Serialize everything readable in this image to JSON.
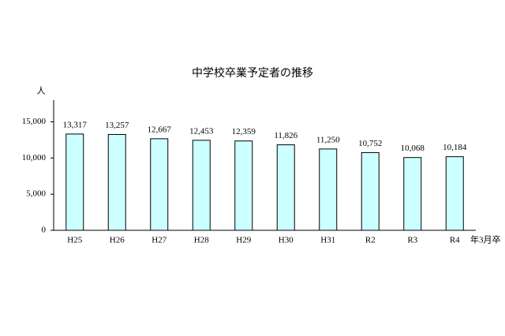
{
  "chart_data": {
    "type": "bar",
    "title": "中学校卒業予定者の推移",
    "y_label": "人",
    "x_label": "年3月卒",
    "categories": [
      "H25",
      "H26",
      "H27",
      "H28",
      "H29",
      "H30",
      "H31",
      "R2",
      "R3",
      "R4"
    ],
    "values": [
      13317,
      13257,
      12667,
      12453,
      12359,
      11826,
      11250,
      10752,
      10068,
      10184
    ],
    "value_labels": [
      "13,317",
      "13,257",
      "12,667",
      "12,453",
      "12,359",
      "11,826",
      "11,250",
      "10,752",
      "10,068",
      "10,184"
    ],
    "color": "#ccffff",
    "ylim": [
      0,
      18000
    ],
    "yticks": [
      0,
      {
        "value": 5000,
        "label": "5,000"
      },
      {
        "value": 10000,
        "label": "10,000"
      },
      {
        "value": 15000,
        "label": "15,000"
      }
    ],
    "grid": false
  }
}
